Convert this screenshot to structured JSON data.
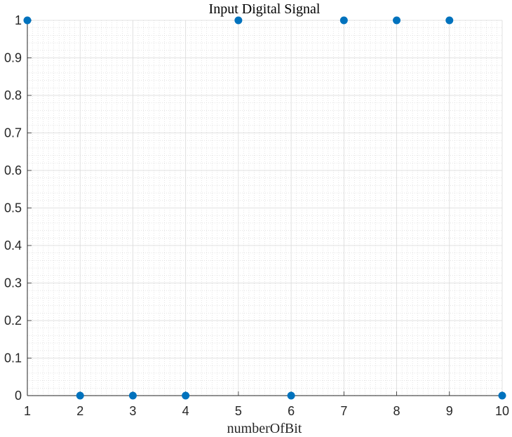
{
  "chart_data": {
    "type": "scatter",
    "title": "Input Digital Signal",
    "xlabel": "numberOfBit",
    "ylabel": "",
    "xlim": [
      1,
      10
    ],
    "ylim": [
      0,
      1
    ],
    "grid": true,
    "minor_grid": true,
    "x_ticks": [
      "1",
      "2",
      "3",
      "4",
      "5",
      "6",
      "7",
      "8",
      "9",
      "10"
    ],
    "y_ticks": [
      "0",
      "0.1",
      "0.2",
      "0.3",
      "0.4",
      "0.5",
      "0.6",
      "0.7",
      "0.8",
      "0.9",
      "1"
    ],
    "series": [
      {
        "color": "#0072BD",
        "x": [
          1,
          2,
          3,
          4,
          5,
          6,
          7,
          8,
          9,
          10
        ],
        "y": [
          1,
          0,
          0,
          0,
          1,
          0,
          1,
          1,
          1,
          0
        ]
      }
    ]
  }
}
